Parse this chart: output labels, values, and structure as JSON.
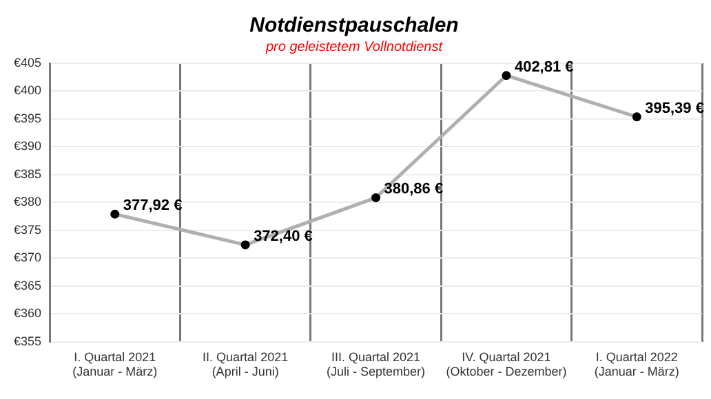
{
  "chart_data": {
    "type": "line",
    "title": "Notdienstpauschalen",
    "subtitle": "pro geleistetem Vollnotdienst",
    "categories": [
      "I. Quartal 2021\n(Januar - März)",
      "II. Quartal 2021\n(April - Juni)",
      "III. Quartal 2021\n(Juli - September)",
      "IV. Quartal 2021\n(Oktober - Dezember)",
      "I. Quartal 2022\n(Januar - März)"
    ],
    "values": [
      377.92,
      372.4,
      380.86,
      402.81,
      395.39
    ],
    "value_labels": [
      "377,92 €",
      "372,40 €",
      "380,86 €",
      "402,81 €",
      "395,39 €"
    ],
    "color": "#b0b0b0",
    "marker": "circle",
    "line_style": "solid",
    "grid": true,
    "legend": false,
    "ylim": [
      355,
      405
    ],
    "yticks": [
      {
        "value": 355,
        "label": "€355"
      },
      {
        "value": 360,
        "label": "€360"
      },
      {
        "value": 365,
        "label": "€365"
      },
      {
        "value": 370,
        "label": "€370"
      },
      {
        "value": 375,
        "label": "€375"
      },
      {
        "value": 380,
        "label": "€380"
      },
      {
        "value": 385,
        "label": "€385"
      },
      {
        "value": 390,
        "label": "€390"
      },
      {
        "value": 395,
        "label": "€395"
      },
      {
        "value": 400,
        "label": "€400"
      },
      {
        "value": 405,
        "label": "€405"
      }
    ]
  }
}
